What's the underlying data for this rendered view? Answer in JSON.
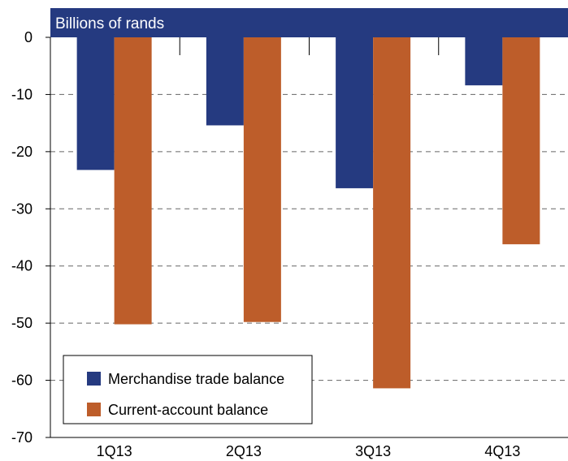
{
  "chart_data": {
    "type": "bar",
    "unit_label": "Billions of rands",
    "categories": [
      "1Q13",
      "2Q13",
      "3Q13",
      "4Q13"
    ],
    "series": [
      {
        "name": "Merchandise trade balance",
        "values": [
          -23.2,
          -15.4,
          -26.4,
          -8.4
        ]
      },
      {
        "name": "Current-account balance",
        "values": [
          -50.2,
          -49.8,
          -61.4,
          -36.2
        ]
      }
    ],
    "ylim": [
      -70,
      0
    ],
    "yticks": [
      0,
      -10,
      -20,
      -30,
      -40,
      -50,
      -60,
      -70
    ],
    "ytick_labels": [
      "0",
      "-10",
      "-20",
      "-30",
      "-40",
      "-50",
      "-60",
      "-70"
    ],
    "grid": true,
    "legend_position": "bottom-left",
    "colors": {
      "series": [
        "#253A80",
        "#BD5D2A"
      ],
      "header": "#253A80",
      "grid": "#666666",
      "axis": "#000000"
    }
  }
}
